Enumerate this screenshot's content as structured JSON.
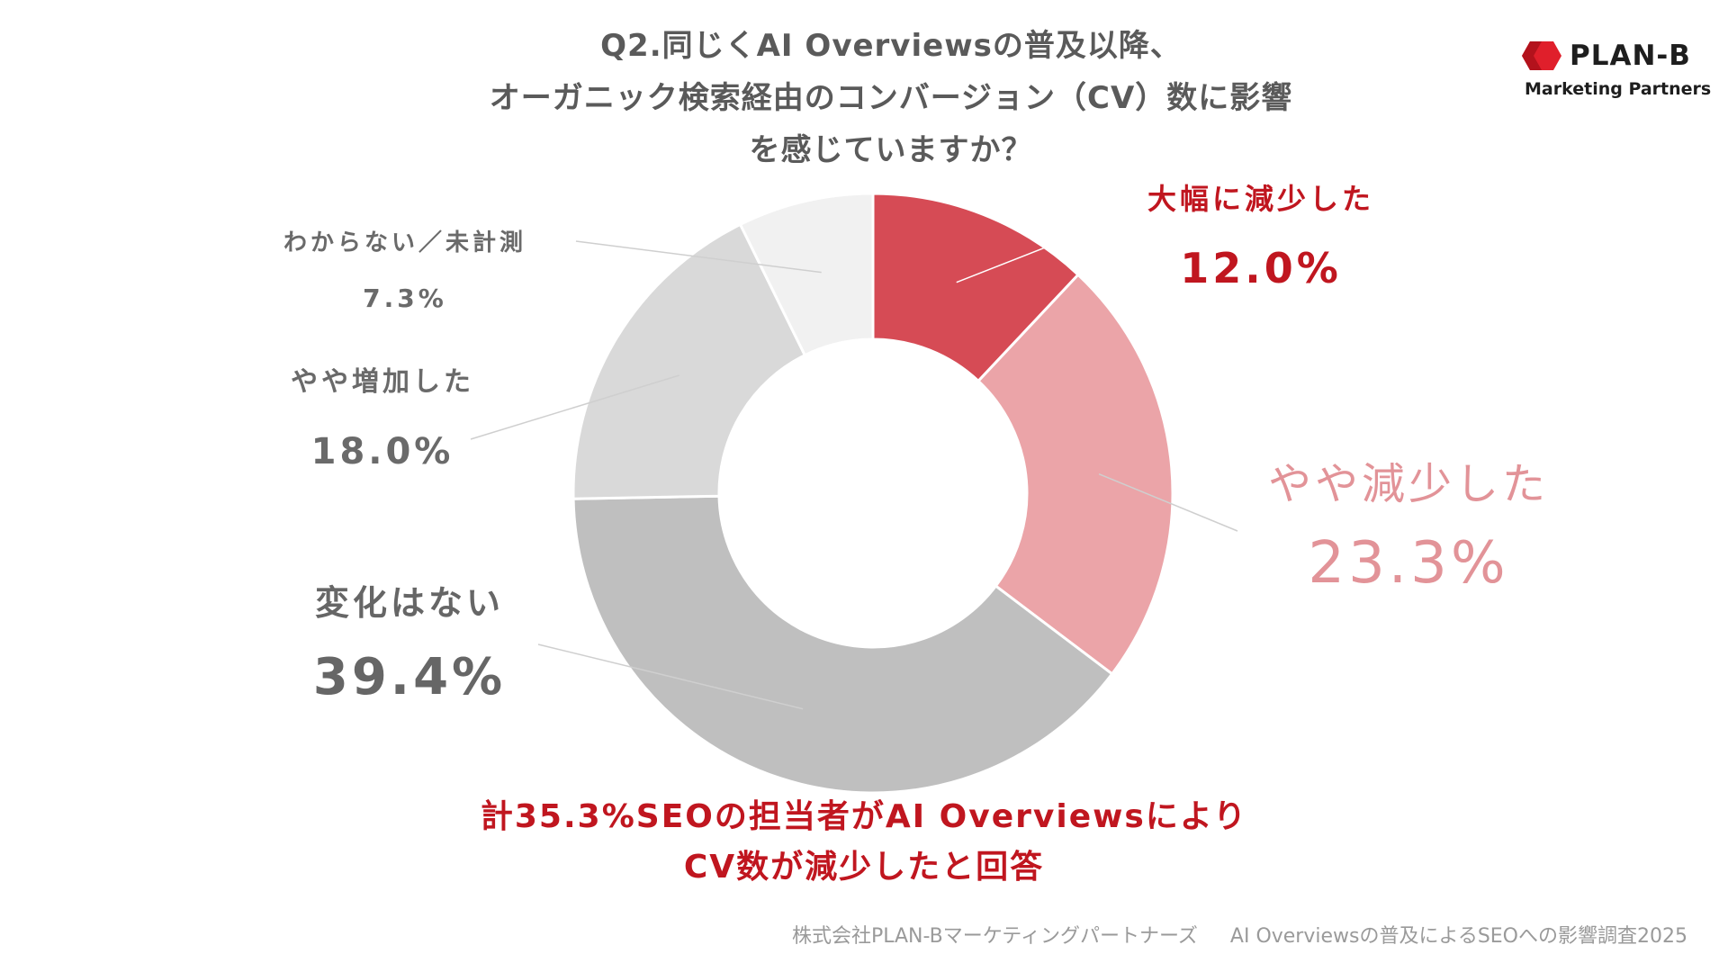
{
  "title": {
    "line1": "Q2.同じくAI Overviewsの普及以降、",
    "line2": "オーガニック検索経由のコンバージョン（CV）数に影響",
    "line3": "を感じていますか？"
  },
  "logo": {
    "name": "PLAN-B",
    "subtitle": "Marketing Partners",
    "mark_color": "#e01f2b"
  },
  "chart_data": {
    "type": "pie",
    "donut": true,
    "start_angle": "12 o'clock, clockwise",
    "slices": [
      {
        "label": "大幅に減少した",
        "value": 12.0,
        "display": "12.0%",
        "color": "#d64b55"
      },
      {
        "label": "やや減少した",
        "value": 23.3,
        "display": "23.3%",
        "color": "#eba4a8"
      },
      {
        "label": "変化はない",
        "value": 39.4,
        "display": "39.4%",
        "color": "#bfbfbf"
      },
      {
        "label": "やや増加した",
        "value": 18.0,
        "display": "18.0%",
        "color": "#d9d9d9"
      },
      {
        "label": "わからない／未計測",
        "value": 7.3,
        "display": "7.3%",
        "color": "#f1f1f1"
      }
    ],
    "label_colors": {
      "strong_decrease": "#c0161f",
      "slight_decrease": "#e29398",
      "neutral": "#666666"
    }
  },
  "conclusion": {
    "line1": "計35.3%SEOの担当者がAI Overviewsにより",
    "line2": "CV数が減少したと回答"
  },
  "footer": {
    "company": "株式会社PLAN-Bマーケティングパートナーズ",
    "survey": "AI Overviewsの普及によるSEOへの影響調査2025"
  }
}
